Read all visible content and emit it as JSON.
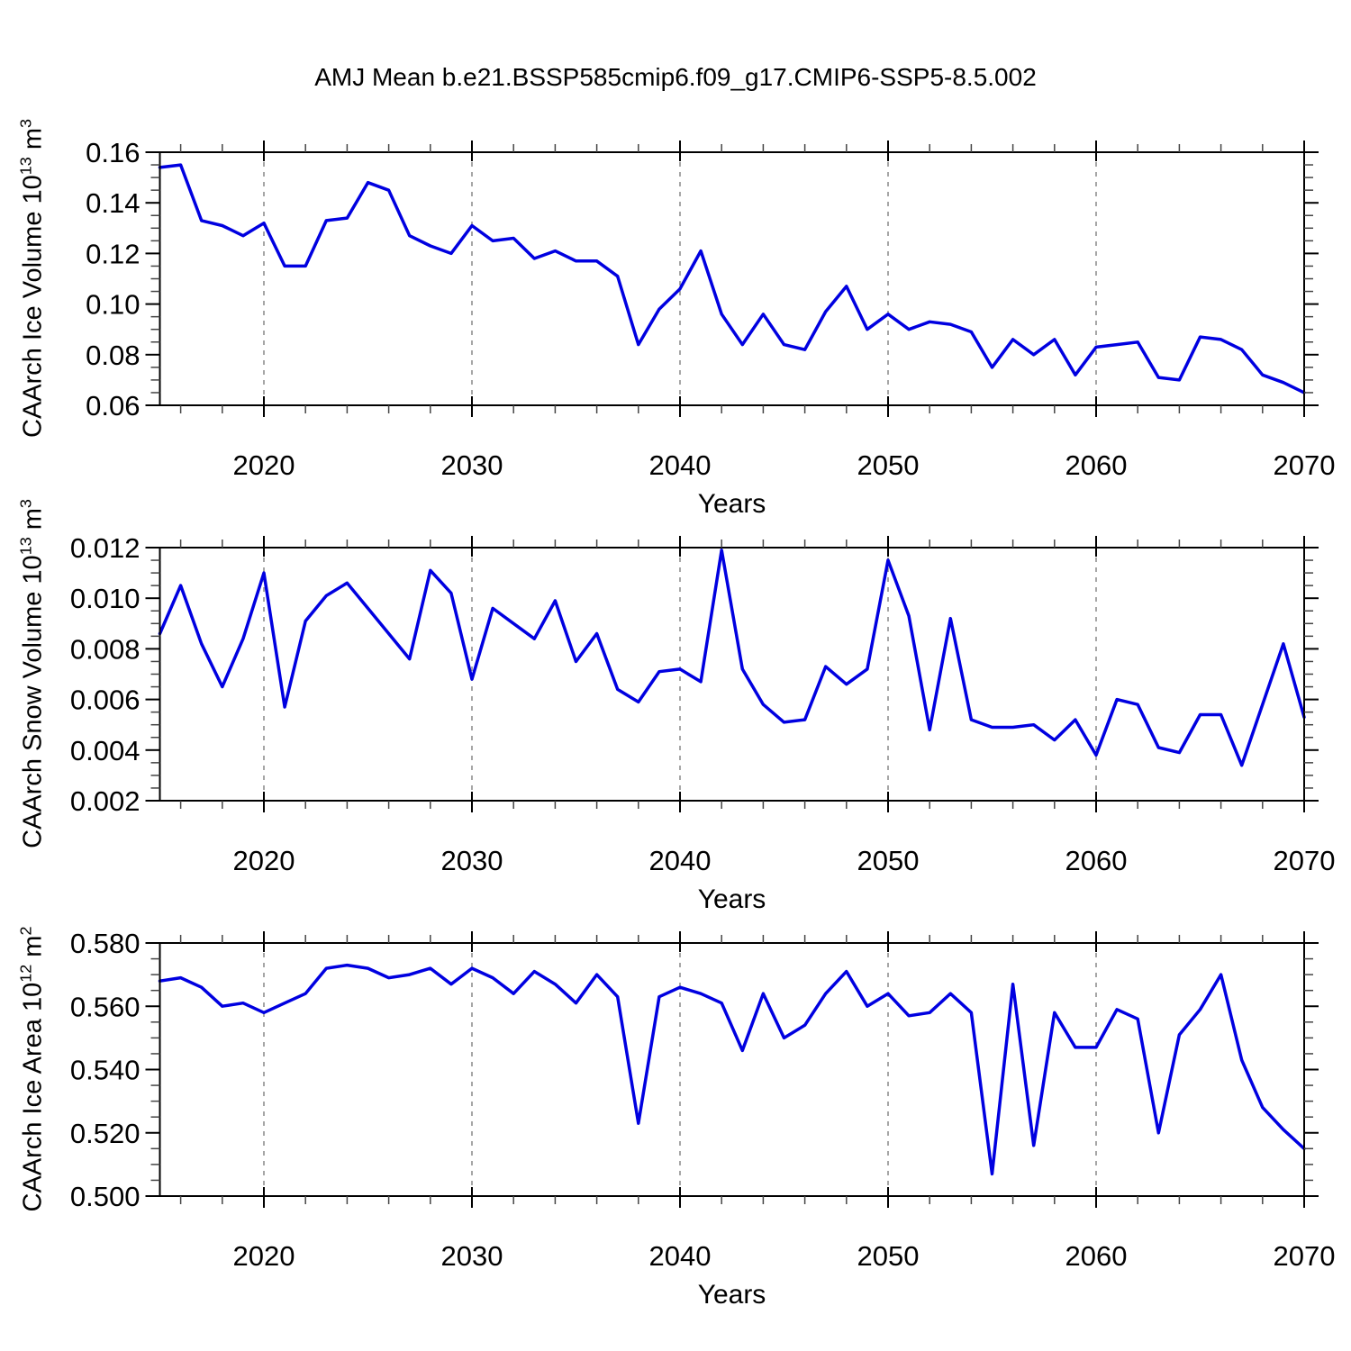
{
  "title": "AMJ Mean b.e21.BSSP585cmip6.f09_g17.CMIP6-SSP5-8.5.002",
  "colors": {
    "line": "#0000e0",
    "grid": "#808080",
    "axis": "#000000",
    "minor_tick": "#444444",
    "background": "#ffffff"
  },
  "x_axis": {
    "label": "Years",
    "range": [
      2015,
      2070
    ],
    "ticks": [
      2020,
      2030,
      2040,
      2050,
      2060,
      2070
    ],
    "tick_labels": [
      "2020",
      "2030",
      "2040",
      "2050",
      "2060",
      "2070"
    ],
    "grid_years": [
      2020,
      2030,
      2040,
      2050,
      2060
    ],
    "minor_step_years": 2
  },
  "chart_data": [
    {
      "type": "line",
      "series_name": "CAArch Ice Volume",
      "ylabel": "CAArch Ice Volume 10^13 m^3",
      "ylabel_parts": [
        "CAArch Ice Volume 10",
        "13",
        " m",
        "3"
      ],
      "xlabel": "Years",
      "ylim": [
        0.06,
        0.16
      ],
      "yticks": [
        0.06,
        0.08,
        0.1,
        0.12,
        0.14,
        0.16
      ],
      "ytick_labels": [
        "0.06",
        "0.08",
        "0.10",
        "0.12",
        "0.14",
        "0.16"
      ],
      "y_minor_step": 0.005,
      "grid": "vertical-dashed",
      "legend": "none",
      "x": [
        2015,
        2016,
        2017,
        2018,
        2019,
        2020,
        2021,
        2022,
        2023,
        2024,
        2025,
        2026,
        2027,
        2028,
        2029,
        2030,
        2031,
        2032,
        2033,
        2034,
        2035,
        2036,
        2037,
        2038,
        2039,
        2040,
        2041,
        2042,
        2043,
        2044,
        2045,
        2046,
        2047,
        2048,
        2049,
        2050,
        2051,
        2052,
        2053,
        2054,
        2055,
        2056,
        2057,
        2058,
        2059,
        2060,
        2061,
        2062,
        2063,
        2064,
        2065,
        2066,
        2067,
        2068,
        2069,
        2070
      ],
      "values": [
        0.154,
        0.155,
        0.133,
        0.131,
        0.127,
        0.132,
        0.115,
        0.115,
        0.133,
        0.134,
        0.148,
        0.145,
        0.127,
        0.123,
        0.12,
        0.131,
        0.125,
        0.126,
        0.118,
        0.121,
        0.117,
        0.117,
        0.111,
        0.084,
        0.098,
        0.106,
        0.121,
        0.096,
        0.084,
        0.096,
        0.084,
        0.082,
        0.097,
        0.107,
        0.09,
        0.096,
        0.09,
        0.093,
        0.092,
        0.089,
        0.075,
        0.086,
        0.08,
        0.086,
        0.072,
        0.083,
        0.084,
        0.085,
        0.071,
        0.07,
        0.087,
        0.086,
        0.082,
        0.072,
        0.069,
        0.065
      ]
    },
    {
      "type": "line",
      "series_name": "CAArch Snow Volume",
      "ylabel": "CAArch Snow Volume 10^13 m^3",
      "ylabel_parts": [
        "CAArch Snow Volume 10",
        "13",
        " m",
        "3"
      ],
      "xlabel": "Years",
      "ylim": [
        0.002,
        0.012
      ],
      "yticks": [
        0.002,
        0.004,
        0.006,
        0.008,
        0.01,
        0.012
      ],
      "ytick_labels": [
        "0.002",
        "0.004",
        "0.006",
        "0.008",
        "0.010",
        "0.012"
      ],
      "y_minor_step": 0.0005,
      "grid": "vertical-dashed",
      "legend": "none",
      "x": [
        2015,
        2016,
        2017,
        2018,
        2019,
        2020,
        2021,
        2022,
        2023,
        2024,
        2025,
        2026,
        2027,
        2028,
        2029,
        2030,
        2031,
        2032,
        2033,
        2034,
        2035,
        2036,
        2037,
        2038,
        2039,
        2040,
        2041,
        2042,
        2043,
        2044,
        2045,
        2046,
        2047,
        2048,
        2049,
        2050,
        2051,
        2052,
        2053,
        2054,
        2055,
        2056,
        2057,
        2058,
        2059,
        2060,
        2061,
        2062,
        2063,
        2064,
        2065,
        2066,
        2067,
        2068,
        2069,
        2070
      ],
      "values": [
        0.0086,
        0.0105,
        0.0082,
        0.0065,
        0.0084,
        0.011,
        0.0057,
        0.0091,
        0.0101,
        0.0106,
        0.0096,
        0.0086,
        0.0076,
        0.0111,
        0.0102,
        0.0068,
        0.0096,
        0.009,
        0.0084,
        0.0099,
        0.0075,
        0.0086,
        0.0064,
        0.0059,
        0.0071,
        0.0072,
        0.0067,
        0.0119,
        0.0072,
        0.0058,
        0.0051,
        0.0052,
        0.0073,
        0.0066,
        0.0072,
        0.0115,
        0.0093,
        0.0048,
        0.0092,
        0.0052,
        0.0049,
        0.0049,
        0.005,
        0.0044,
        0.0052,
        0.0038,
        0.006,
        0.0058,
        0.0041,
        0.0039,
        0.0054,
        0.0054,
        0.0034,
        0.0058,
        0.0082,
        0.0053
      ]
    },
    {
      "type": "line",
      "series_name": "CAArch Ice Area",
      "ylabel": "CAArch Ice Area 10^12 m^2",
      "ylabel_parts": [
        "CAArch Ice Area 10",
        "12",
        " m",
        "2"
      ],
      "xlabel": "Years",
      "ylim": [
        0.5,
        0.58
      ],
      "yticks": [
        0.5,
        0.52,
        0.54,
        0.56,
        0.58
      ],
      "ytick_labels": [
        "0.500",
        "0.520",
        "0.540",
        "0.560",
        "0.580"
      ],
      "y_minor_step": 0.005,
      "grid": "vertical-dashed",
      "legend": "none",
      "x": [
        2015,
        2016,
        2017,
        2018,
        2019,
        2020,
        2021,
        2022,
        2023,
        2024,
        2025,
        2026,
        2027,
        2028,
        2029,
        2030,
        2031,
        2032,
        2033,
        2034,
        2035,
        2036,
        2037,
        2038,
        2039,
        2040,
        2041,
        2042,
        2043,
        2044,
        2045,
        2046,
        2047,
        2048,
        2049,
        2050,
        2051,
        2052,
        2053,
        2054,
        2055,
        2056,
        2057,
        2058,
        2059,
        2060,
        2061,
        2062,
        2063,
        2064,
        2065,
        2066,
        2067,
        2068,
        2069,
        2070
      ],
      "values": [
        0.568,
        0.569,
        0.566,
        0.56,
        0.561,
        0.558,
        0.561,
        0.564,
        0.572,
        0.573,
        0.572,
        0.569,
        0.57,
        0.572,
        0.567,
        0.572,
        0.569,
        0.564,
        0.571,
        0.567,
        0.561,
        0.57,
        0.563,
        0.523,
        0.563,
        0.566,
        0.564,
        0.561,
        0.546,
        0.564,
        0.55,
        0.554,
        0.564,
        0.571,
        0.56,
        0.564,
        0.557,
        0.558,
        0.564,
        0.558,
        0.507,
        0.567,
        0.516,
        0.558,
        0.547,
        0.547,
        0.559,
        0.556,
        0.52,
        0.551,
        0.559,
        0.57,
        0.543,
        0.528,
        0.521,
        0.515
      ]
    }
  ]
}
